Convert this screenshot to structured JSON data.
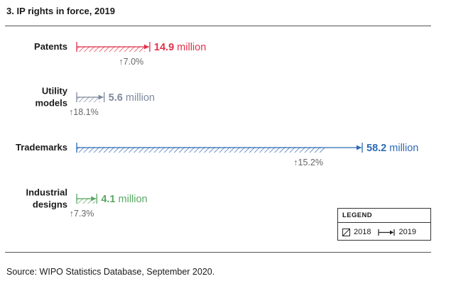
{
  "title": "3. IP rights in force, 2019",
  "source": "Source: WIPO Statistics Database, September 2020.",
  "legend": {
    "title": "LEGEND",
    "label_2018": "2018",
    "label_2019": "2019"
  },
  "chart_data": {
    "type": "bar",
    "title": "3. IP rights in force, 2019",
    "unit": "million",
    "categories": [
      {
        "label_lines": [
          "Patents"
        ],
        "value_2019": 14.9,
        "value_label": "14.9 million",
        "growth_label": "↑7.0%",
        "color": "#e0324b"
      },
      {
        "label_lines": [
          "Utility",
          "models"
        ],
        "value_2019": 5.6,
        "value_label": "5.6 million",
        "growth_label": "↑18.1%",
        "color": "#7f8a9e"
      },
      {
        "label_lines": [
          "Trademarks"
        ],
        "value_2019": 58.2,
        "value_label": "58.2 million",
        "growth_label": "↑15.2%",
        "color": "#2d6ab5"
      },
      {
        "label_lines": [
          "Industrial",
          "designs"
        ],
        "value_2019": 4.1,
        "value_label": "4.1 million",
        "growth_label": "↑7.3%",
        "color": "#5aa763"
      }
    ],
    "growth_2018_to_2019_percent": [
      7.0,
      18.1,
      15.2,
      7.3
    ],
    "series": [
      {
        "name": "2018",
        "style": "hatched"
      },
      {
        "name": "2019",
        "style": "arrow"
      }
    ],
    "legend_position": "bottom-right"
  }
}
